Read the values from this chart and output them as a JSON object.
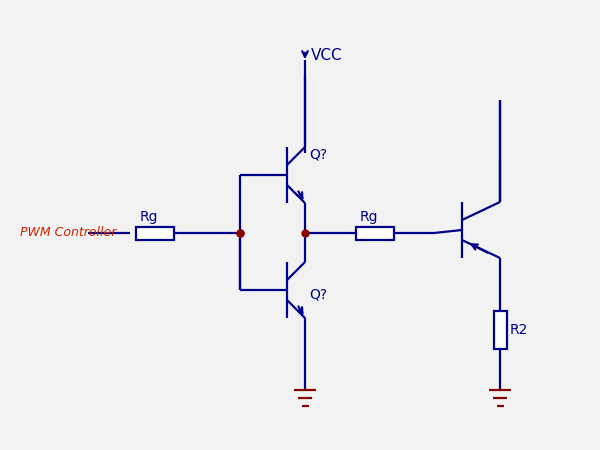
{
  "bg_color": "#f2f2f2",
  "line_color": "#00008B",
  "pwm_color": "#CC2200",
  "label_color": "#00008B",
  "vcc_label": "VCC",
  "pwm_label": "PWM Controller",
  "rg1_label": "Rg",
  "rg2_label": "Rg",
  "r2_label": "R2",
  "q_top_label": "Q?",
  "q_bot_label": "Q?"
}
